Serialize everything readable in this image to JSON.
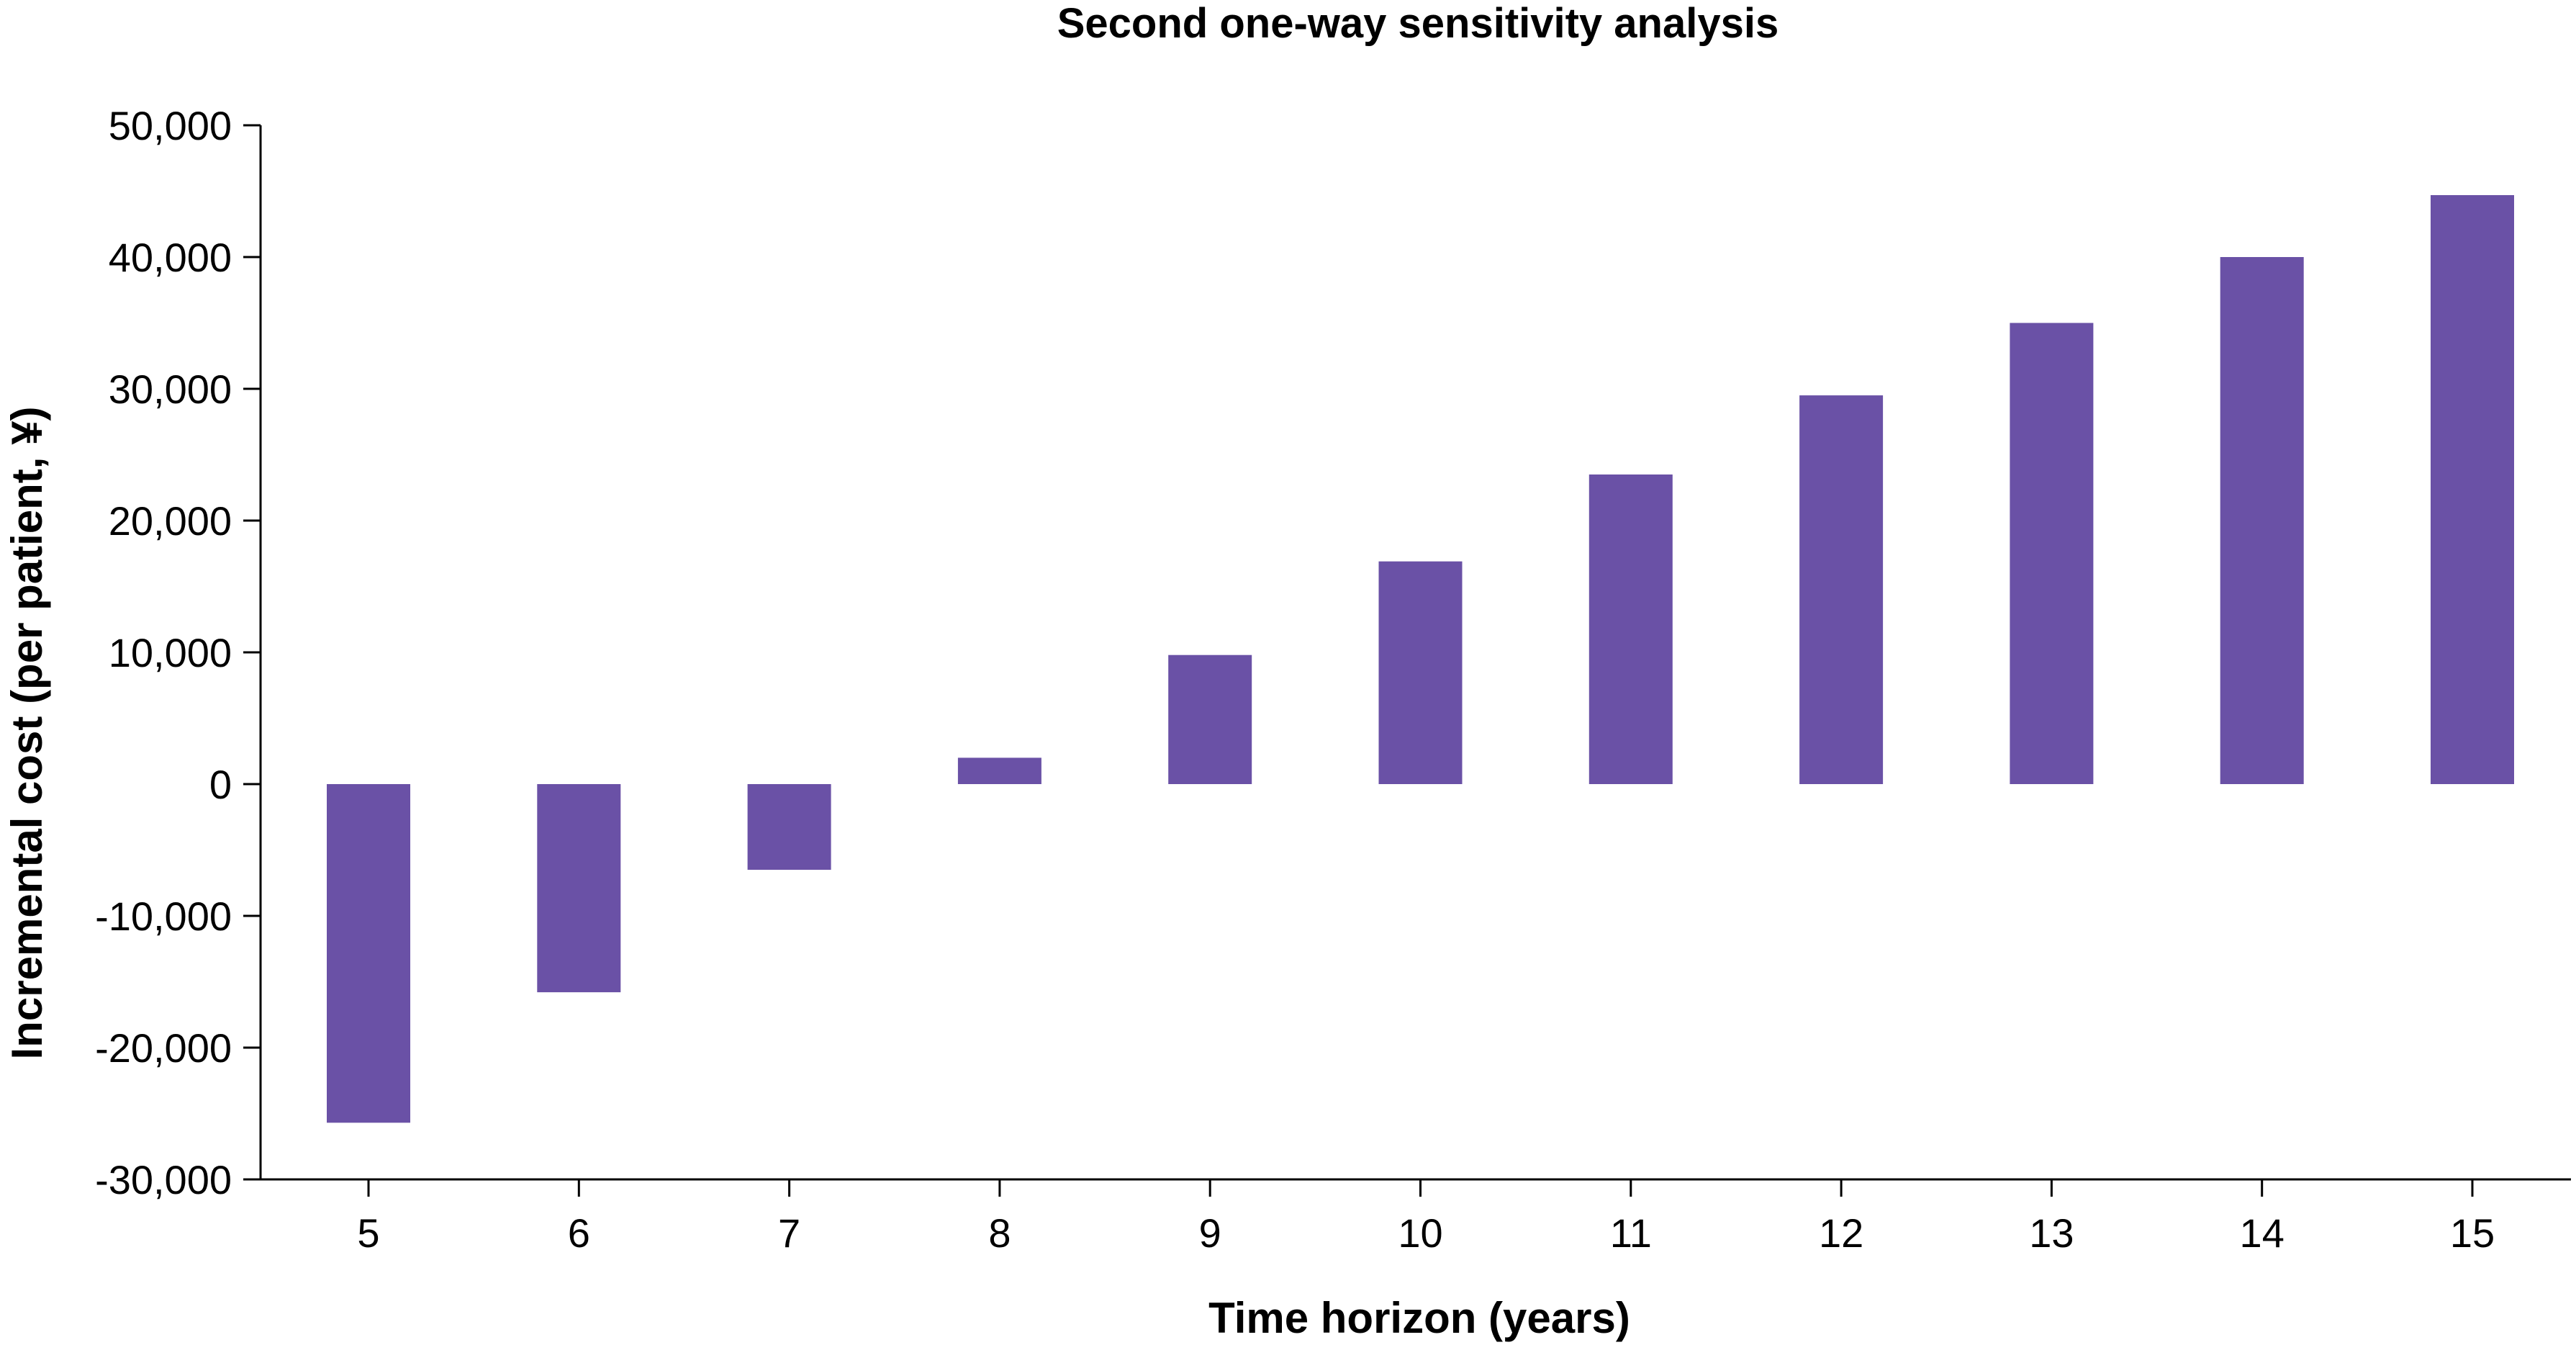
{
  "chart_data": {
    "type": "bar",
    "title": "Second one-way sensitivity analysis",
    "xlabel": "Time horizon (years)",
    "ylabel": "Incremental cost (per patient, ¥)",
    "categories": [
      "5",
      "6",
      "7",
      "8",
      "9",
      "10",
      "11",
      "12",
      "13",
      "14",
      "15"
    ],
    "values": [
      -25700,
      -15800,
      -6500,
      2000,
      9800,
      16900,
      23500,
      29500,
      35000,
      40000,
      44700
    ],
    "ylim": [
      -30000,
      50000
    ],
    "yticks": [
      50000,
      40000,
      30000,
      20000,
      10000,
      0,
      -10000,
      -20000,
      -30000
    ],
    "ytick_labels": [
      "50,000",
      "40,000",
      "30,000",
      "20,000",
      "10,000",
      "0",
      "-10,000",
      "-20,000",
      "-30,000"
    ],
    "grid": false,
    "bar_color": "#6a51a6"
  }
}
